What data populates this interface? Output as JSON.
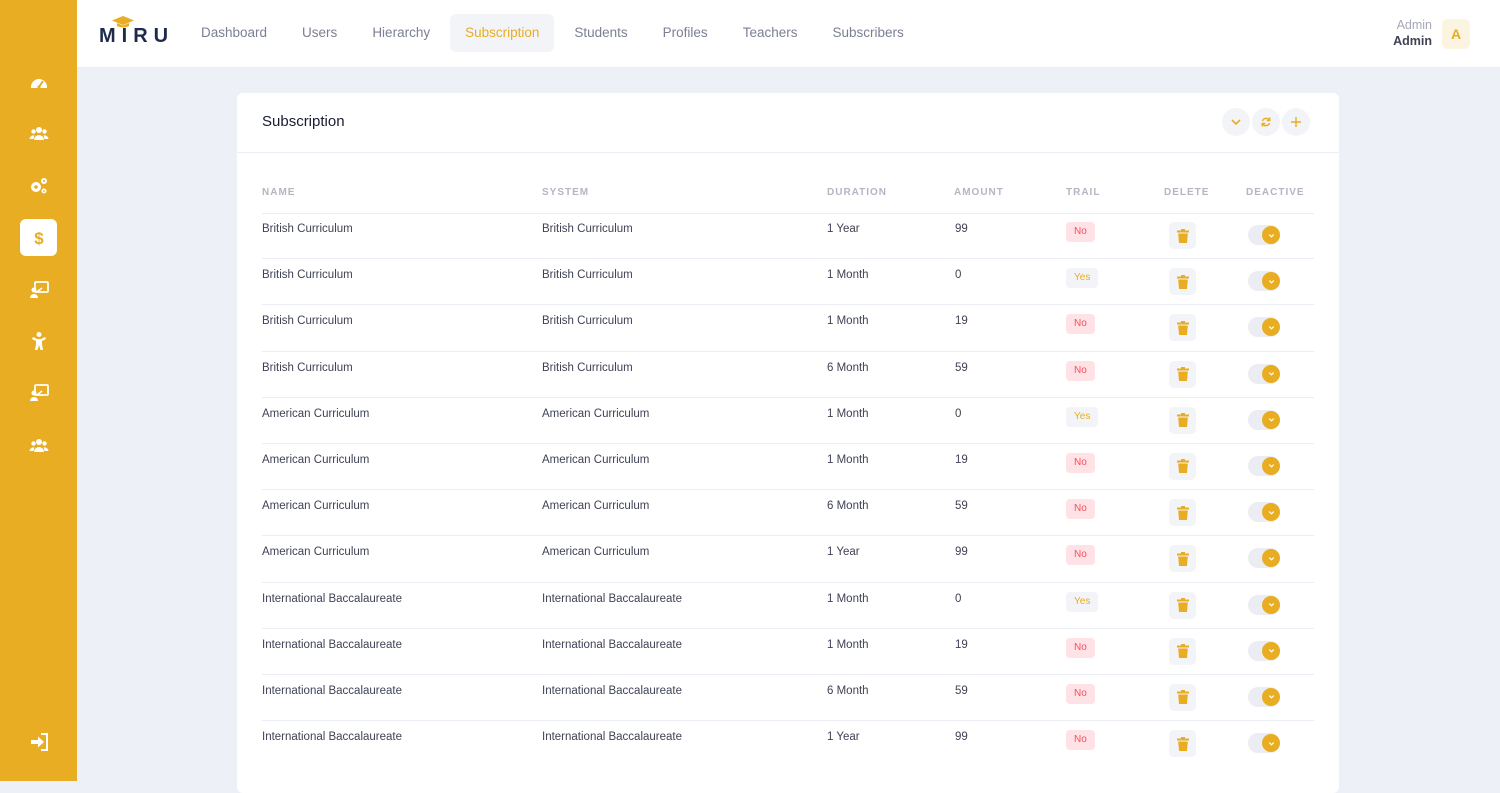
{
  "brand": {
    "logo_text": "MIRU"
  },
  "nav": {
    "items": [
      {
        "label": "Dashboard"
      },
      {
        "label": "Users"
      },
      {
        "label": "Hierarchy"
      },
      {
        "label": "Subscription"
      },
      {
        "label": "Students"
      },
      {
        "label": "Profiles"
      },
      {
        "label": "Teachers"
      },
      {
        "label": "Subscribers"
      }
    ],
    "active_label": "Subscription"
  },
  "user": {
    "role": "Admin",
    "name": "Admin",
    "initial": "A"
  },
  "sidebar": {
    "icons": [
      "dashboard-gauge-icon",
      "users-group-icon",
      "settings-gears-icon",
      "dollar-icon",
      "teacher-board-icon",
      "child-icon",
      "teacher-board-icon",
      "users-group-icon"
    ],
    "active_icon": "dollar-icon",
    "bottom_icon": "logout-icon"
  },
  "card": {
    "title": "Subscription",
    "tools": [
      "chevron-down-icon",
      "refresh-icon",
      "plus-icon"
    ],
    "columns": {
      "name": "NAME",
      "system": "SYSTEM",
      "duration": "DURATION",
      "amount": "AMOUNT",
      "trail": "TRAIL",
      "delete": "DELETE",
      "deactive": "DEACTIVE"
    },
    "rows": [
      {
        "name": "British Curriculum",
        "system": "British Curriculum",
        "duration": "1 Year",
        "amount": "99",
        "trail": "No"
      },
      {
        "name": "British Curriculum",
        "system": "British Curriculum",
        "duration": "1 Month",
        "amount": "0",
        "trail": "Yes"
      },
      {
        "name": "British Curriculum",
        "system": "British Curriculum",
        "duration": "1 Month",
        "amount": "19",
        "trail": "No"
      },
      {
        "name": "British Curriculum",
        "system": "British Curriculum",
        "duration": "6 Month",
        "amount": "59",
        "trail": "No"
      },
      {
        "name": "American Curriculum",
        "system": "American Curriculum",
        "duration": "1 Month",
        "amount": "0",
        "trail": "Yes"
      },
      {
        "name": "American Curriculum",
        "system": "American Curriculum",
        "duration": "1 Month",
        "amount": "19",
        "trail": "No"
      },
      {
        "name": "American Curriculum",
        "system": "American Curriculum",
        "duration": "6 Month",
        "amount": "59",
        "trail": "No"
      },
      {
        "name": "American Curriculum",
        "system": "American Curriculum",
        "duration": "1 Year",
        "amount": "99",
        "trail": "No"
      },
      {
        "name": "International Baccalaureate",
        "system": "International Baccalaureate",
        "duration": "1 Month",
        "amount": "0",
        "trail": "Yes"
      },
      {
        "name": "International Baccalaureate",
        "system": "International Baccalaureate",
        "duration": "1 Month",
        "amount": "19",
        "trail": "No"
      },
      {
        "name": "International Baccalaureate",
        "system": "International Baccalaureate",
        "duration": "6 Month",
        "amount": "59",
        "trail": "No"
      },
      {
        "name": "International Baccalaureate",
        "system": "International Baccalaureate",
        "duration": "1 Year",
        "amount": "99",
        "trail": "No"
      }
    ]
  },
  "colors": {
    "accent": "#e8ad22",
    "danger": "#f64e60",
    "text": "#3f4254"
  }
}
